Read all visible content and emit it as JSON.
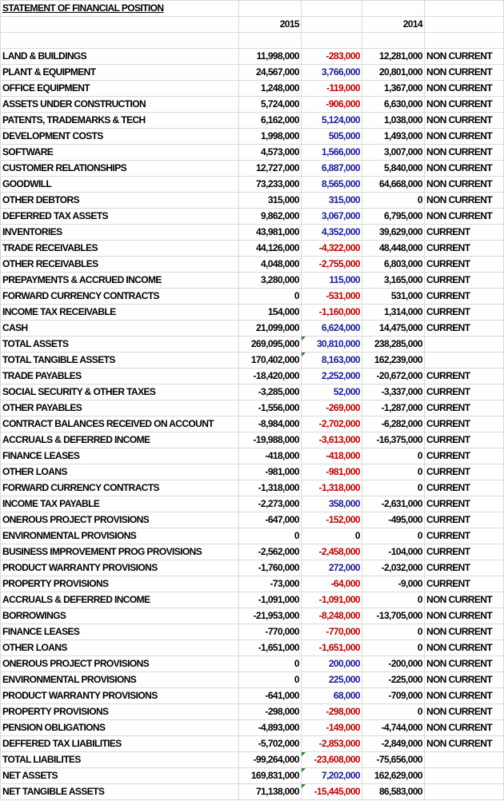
{
  "sheet": {
    "title": "STATEMENT OF FINANCIAL POSITION",
    "headers": {
      "col_2015": "2015",
      "col_change": "",
      "col_2014": "2014",
      "col_class": ""
    },
    "colors": {
      "negative_change": "#c00000",
      "positive_change": "#1a1a9c",
      "error_marker": "#1f8a1f"
    },
    "rows": [
      {
        "label": "LAND & BUILDINGS",
        "y2015": "11,998,000",
        "change": "-283,000",
        "y2014": "12,281,000",
        "class": "NON CURRENT"
      },
      {
        "label": "PLANT & EQUIPMENT",
        "y2015": "24,567,000",
        "change": "3,766,000",
        "y2014": "20,801,000",
        "class": "NON CURRENT"
      },
      {
        "label": "OFFICE EQUIPMENT",
        "y2015": "1,248,000",
        "change": "-119,000",
        "y2014": "1,367,000",
        "class": "NON CURRENT"
      },
      {
        "label": "ASSETS UNDER CONSTRUCTION",
        "y2015": "5,724,000",
        "change": "-906,000",
        "y2014": "6,630,000",
        "class": "NON CURRENT"
      },
      {
        "label": "PATENTS, TRADEMARKS & TECH",
        "y2015": "6,162,000",
        "change": "5,124,000",
        "y2014": "1,038,000",
        "class": "NON CURRENT"
      },
      {
        "label": "DEVELOPMENT COSTS",
        "y2015": "1,998,000",
        "change": "505,000",
        "y2014": "1,493,000",
        "class": "NON CURRENT"
      },
      {
        "label": "SOFTWARE",
        "y2015": "4,573,000",
        "change": "1,566,000",
        "y2014": "3,007,000",
        "class": "NON CURRENT"
      },
      {
        "label": "CUSTOMER RELATIONSHIPS",
        "y2015": "12,727,000",
        "change": "6,887,000",
        "y2014": "5,840,000",
        "class": "NON CURRENT"
      },
      {
        "label": "GOODWILL",
        "y2015": "73,233,000",
        "change": "8,565,000",
        "y2014": "64,668,000",
        "class": "NON CURRENT"
      },
      {
        "label": "OTHER DEBTORS",
        "y2015": "315,000",
        "change": "315,000",
        "y2014": "0",
        "class": "NON CURRENT"
      },
      {
        "label": "DEFERRED TAX ASSETS",
        "y2015": "9,862,000",
        "change": "3,067,000",
        "y2014": "6,795,000",
        "class": "NON CURRENT"
      },
      {
        "label": "INVENTORIES",
        "y2015": "43,981,000",
        "change": "4,352,000",
        "y2014": "39,629,000",
        "class": "CURRENT"
      },
      {
        "label": "TRADE RECEIVABLES",
        "y2015": "44,126,000",
        "change": "-4,322,000",
        "y2014": "48,448,000",
        "class": "CURRENT"
      },
      {
        "label": "OTHER RECEIVABLES",
        "y2015": "4,048,000",
        "change": "-2,755,000",
        "y2014": "6,803,000",
        "class": "CURRENT"
      },
      {
        "label": "PREPAYMENTS & ACCRUED INCOME",
        "y2015": "3,280,000",
        "change": "115,000",
        "y2014": "3,165,000",
        "class": "CURRENT"
      },
      {
        "label": "FORWARD CURRENCY CONTRACTS",
        "y2015": "0",
        "change": "-531,000",
        "y2014": "531,000",
        "class": "CURRENT"
      },
      {
        "label": "INCOME TAX RECEIVABLE",
        "y2015": "154,000",
        "change": "-1,160,000",
        "y2014": "1,314,000",
        "class": "CURRENT"
      },
      {
        "label": "CASH",
        "y2015": "21,099,000",
        "change": "6,624,000",
        "y2014": "14,475,000",
        "class": "CURRENT"
      },
      {
        "label": "TOTAL ASSETS",
        "y2015": "269,095,000",
        "change": "30,810,000",
        "y2014": "238,285,000",
        "class": "",
        "flag": true
      },
      {
        "label": "TOTAL TANGIBLE ASSETS",
        "y2015": "170,402,000",
        "change": "8,163,000",
        "y2014": "162,239,000",
        "class": "",
        "flag": true
      },
      {
        "label": "TRADE PAYABLES",
        "y2015": "-18,420,000",
        "change": "2,252,000",
        "y2014": "-20,672,000",
        "class": "CURRENT"
      },
      {
        "label": "SOCIAL SECURITY & OTHER TAXES",
        "y2015": "-3,285,000",
        "change": "52,000",
        "y2014": "-3,337,000",
        "class": "CURRENT"
      },
      {
        "label": "OTHER PAYABLES",
        "y2015": "-1,556,000",
        "change": "-269,000",
        "y2014": "-1,287,000",
        "class": "CURRENT"
      },
      {
        "label": "CONTRACT BALANCES RECEIVED ON ACCOUNT",
        "y2015": "-8,984,000",
        "change": "-2,702,000",
        "y2014": "-6,282,000",
        "class": "CURRENT"
      },
      {
        "label": "ACCRUALS & DEFERRED INCOME",
        "y2015": "-19,988,000",
        "change": "-3,613,000",
        "y2014": "-16,375,000",
        "class": "CURRENT"
      },
      {
        "label": "FINANCE LEASES",
        "y2015": "-418,000",
        "change": "-418,000",
        "y2014": "0",
        "class": "CURRENT"
      },
      {
        "label": "OTHER LOANS",
        "y2015": "-981,000",
        "change": "-981,000",
        "y2014": "0",
        "class": "CURRENT"
      },
      {
        "label": "FORWARD CURRENCY CONTRACTS",
        "y2015": "-1,318,000",
        "change": "-1,318,000",
        "y2014": "0",
        "class": "CURRENT"
      },
      {
        "label": "INCOME TAX PAYABLE",
        "y2015": "-2,273,000",
        "change": "358,000",
        "y2014": "-2,631,000",
        "class": "CURRENT"
      },
      {
        "label": "ONEROUS PROJECT PROVISIONS",
        "y2015": "-647,000",
        "change": "-152,000",
        "y2014": "-495,000",
        "class": "CURRENT"
      },
      {
        "label": "ENVIRONMENTAL PROVISIONS",
        "y2015": "0",
        "change": "0",
        "y2014": "0",
        "class": "CURRENT"
      },
      {
        "label": "BUSINESS IMPROVEMENT PROG PROVISIONS",
        "y2015": "-2,562,000",
        "change": "-2,458,000",
        "y2014": "-104,000",
        "class": "CURRENT"
      },
      {
        "label": "PRODUCT WARRANTY PROVISIONS",
        "y2015": "-1,760,000",
        "change": "272,000",
        "y2014": "-2,032,000",
        "class": "CURRENT"
      },
      {
        "label": "PROPERTY PROVISIONS",
        "y2015": "-73,000",
        "change": "-64,000",
        "y2014": "-9,000",
        "class": "CURRENT"
      },
      {
        "label": "ACCRUALS & DEFERRED INCOME",
        "y2015": "-1,091,000",
        "change": "-1,091,000",
        "y2014": "0",
        "class": "NON CURRENT"
      },
      {
        "label": "BORROWINGS",
        "y2015": "-21,953,000",
        "change": "-8,248,000",
        "y2014": "-13,705,000",
        "class": "NON CURRENT"
      },
      {
        "label": "FINANCE LEASES",
        "y2015": "-770,000",
        "change": "-770,000",
        "y2014": "0",
        "class": "NON CURRENT"
      },
      {
        "label": "OTHER LOANS",
        "y2015": "-1,651,000",
        "change": "-1,651,000",
        "y2014": "0",
        "class": "NON CURRENT"
      },
      {
        "label": "ONEROUS PROJECT PROVISIONS",
        "y2015": "0",
        "change": "200,000",
        "y2014": "-200,000",
        "class": "NON CURRENT"
      },
      {
        "label": "ENVIRONMENTAL PROVISIONS",
        "y2015": "0",
        "change": "225,000",
        "y2014": "-225,000",
        "class": "NON CURRENT"
      },
      {
        "label": "PRODUCT WARRANTY PROVISIONS",
        "y2015": "-641,000",
        "change": "68,000",
        "y2014": "-709,000",
        "class": "NON CURRENT"
      },
      {
        "label": "PROPERTY PROVISIONS",
        "y2015": "-298,000",
        "change": "-298,000",
        "y2014": "0",
        "class": "NON CURRENT"
      },
      {
        "label": "PENSION OBLIGATIONS",
        "y2015": "-4,893,000",
        "change": "-149,000",
        "y2014": "-4,744,000",
        "class": "NON CURRENT"
      },
      {
        "label": "DEFFERED TAX LIABILITIES",
        "y2015": "-5,702,000",
        "change": "-2,853,000",
        "y2014": "-2,849,000",
        "class": "NON CURRENT"
      },
      {
        "label": "TOTAL LIABILITES",
        "y2015": "-99,264,000",
        "change": "-23,608,000",
        "y2014": "-75,656,000",
        "class": "",
        "flag": true
      },
      {
        "label": "NET ASSETS",
        "y2015": "169,831,000",
        "change": "7,202,000",
        "y2014": "162,629,000",
        "class": "",
        "flag": true
      },
      {
        "label": "NET TANGIBLE ASSETS",
        "y2015": "71,138,000",
        "change": "-15,445,000",
        "y2014": "86,583,000",
        "class": "",
        "flag": true
      }
    ]
  }
}
